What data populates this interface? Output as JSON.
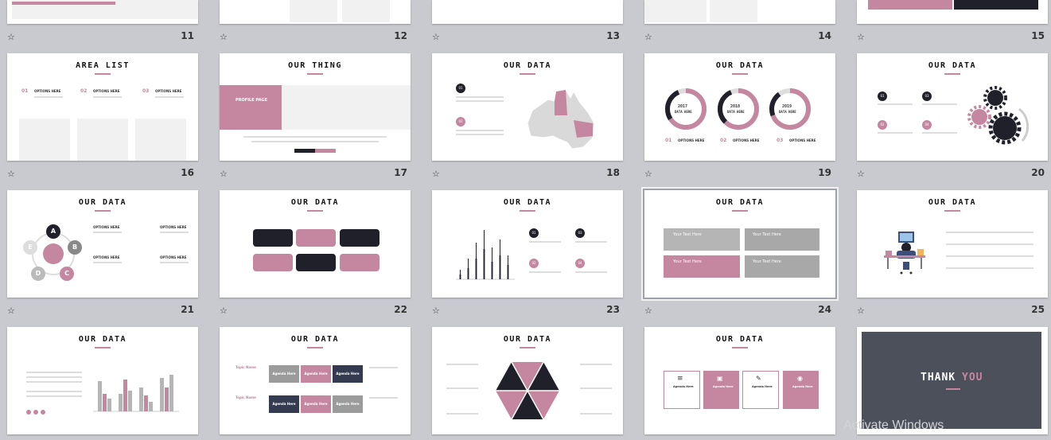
{
  "slides": {
    "s11": {
      "num": "11"
    },
    "s12": {
      "num": "12"
    },
    "s13": {
      "num": "13"
    },
    "s14": {
      "num": "14"
    },
    "s15": {
      "num": "15"
    },
    "s16": {
      "num": "16",
      "title": "AREA LIST",
      "items": [
        {
          "n": "01",
          "t": "OPTIONS HERE"
        },
        {
          "n": "02",
          "t": "OPTIONS HERE"
        },
        {
          "n": "03",
          "t": "OPTIONS HERE"
        }
      ]
    },
    "s17": {
      "num": "17",
      "title": "OUR THING",
      "banner": "PROFILE PAGE"
    },
    "s18": {
      "num": "18",
      "title": "OUR DATA",
      "labels": [
        "01",
        "02"
      ]
    },
    "s19": {
      "num": "19",
      "title": "OUR DATA",
      "donuts": [
        {
          "year": "2017",
          "sub": "DATA HERE",
          "n": "01",
          "t": "OPTIONS HERE"
        },
        {
          "year": "2018",
          "sub": "DATA HERE",
          "n": "02",
          "t": "OPTIONS HERE"
        },
        {
          "year": "2019",
          "sub": "DATA HERE",
          "n": "03",
          "t": "OPTIONS HERE"
        }
      ]
    },
    "s20": {
      "num": "20",
      "title": "OUR DATA",
      "labels": [
        "01",
        "03",
        "02",
        "04"
      ]
    },
    "s21": {
      "num": "21",
      "title": "OUR DATA",
      "nodes": [
        "A",
        "B",
        "C",
        "D",
        "E"
      ],
      "opts": [
        "OPTIONS HERE",
        "OPTIONS HERE",
        "OPTIONS HERE",
        "OPTIONS HERE"
      ]
    },
    "s22": {
      "num": "22",
      "title": "OUR DATA"
    },
    "s23": {
      "num": "23",
      "title": "OUR DATA",
      "labels": [
        "01",
        "03",
        "02",
        "04"
      ]
    },
    "s24": {
      "num": "24",
      "title": "OUR DATA",
      "boxes": [
        "Your Text Here",
        "Your Text Here",
        "Your Text Here",
        "Your Text Here"
      ]
    },
    "s25": {
      "num": "25",
      "title": "OUR DATA"
    },
    "s26": {
      "title": "OUR DATA"
    },
    "s27": {
      "title": "OUR DATA",
      "topics": [
        "Topic Name",
        "Topic Name"
      ],
      "agenda": [
        "Agenda Here",
        "Agenda Here",
        "Agenda Here",
        "Agenda Here",
        "Agenda Here",
        "Agenda Here"
      ]
    },
    "s28": {
      "title": "OUR DATA"
    },
    "s29": {
      "title": "OUR DATA",
      "agenda": [
        "Agenda Here",
        "Agenda Here",
        "Agenda Here",
        "Agenda Here"
      ]
    },
    "s30": {
      "thank": "THANK",
      "you": "YOU"
    }
  },
  "watermark": "Activate Windows",
  "colors": {
    "accent": "#c4879f",
    "dark": "#1f2029",
    "panel_bg": "#c8cacf"
  }
}
